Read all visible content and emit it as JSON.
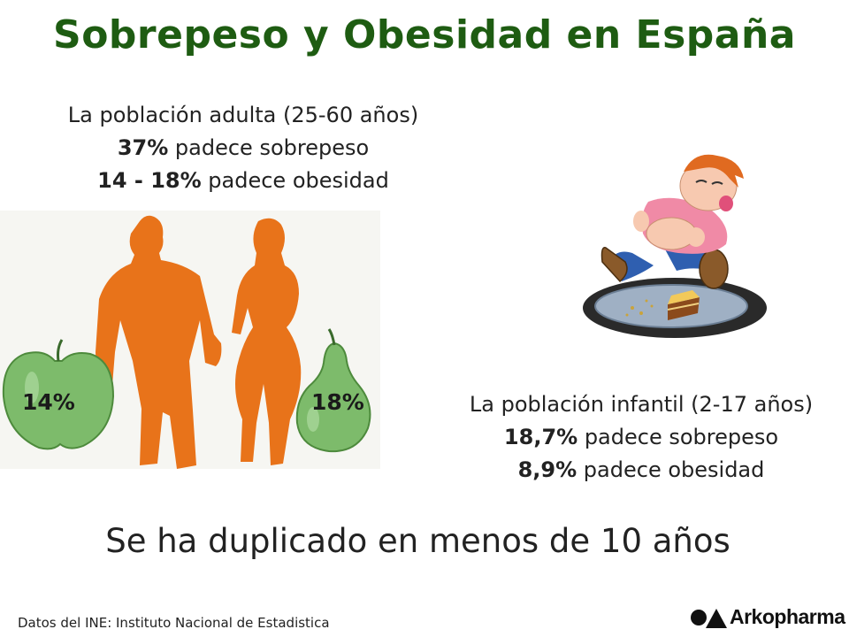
{
  "title": "Sobrepeso y Obesidad en España",
  "adult": {
    "heading": "La población adulta (25-60 años)",
    "line1_value": "37%",
    "line1_text": " padece sobrepeso",
    "line2_value": "14 - 18%",
    "line2_text": " padece obesidad"
  },
  "child": {
    "heading": "La población infantil (2-17 años)",
    "line1_value": "18,7%",
    "line1_text": " padece sobrepeso",
    "line2_value": "8,9%",
    "line2_text": " padece obesidad"
  },
  "apple_label": "14%",
  "pear_label": "18%",
  "summary": "Se ha duplicado en menos de 10 años",
  "source": "Datos del INE: Instituto Nacional de Estadistica",
  "brand": "Arkopharma",
  "colors": {
    "title": "#1e5c12",
    "silhouette": "#e8731a",
    "fruit": "#7dbb6b"
  }
}
